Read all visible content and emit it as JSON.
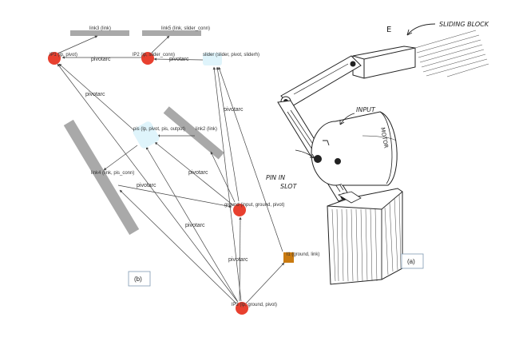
{
  "graph": {
    "nodes": [
      {
        "id": "lp1",
        "label": "lP1 (lp, pivot)"
      },
      {
        "id": "lp2",
        "label": "lP2 (lp, slider_conn)"
      },
      {
        "id": "slider",
        "label": "slider (slider, pivot, sliderh)"
      },
      {
        "id": "pis",
        "label": "pis (lp, pivot, pis, output)"
      },
      {
        "id": "ground",
        "label": "ground (input, ground, pivot)"
      },
      {
        "id": "lp3",
        "label": "lP3 (lp, ground, pivot)"
      },
      {
        "id": "l1",
        "label": "l1 (ground, link)"
      }
    ],
    "links": [
      {
        "id": "link3",
        "label": "link3 (link)"
      },
      {
        "id": "link5",
        "label": "link5 (link, slider_conn)"
      },
      {
        "id": "link2",
        "label": "link2 (link)"
      },
      {
        "id": "link4",
        "label": "link4 (link, pis_conn)"
      }
    ],
    "edge_label": "pivotarc",
    "panel_label": "(b)",
    "colors": {
      "node": "#e8402f",
      "slider_node": "#dff4fb",
      "square_node": "#c97a10",
      "link_bar": "#a9a9a9",
      "edge": "#444444"
    }
  },
  "sketch": {
    "letter": "E",
    "sliding_block": "SLIDING BLOCK",
    "input": "INPUT",
    "motor": "MOTOR",
    "pin_line1": "PIN IN",
    "pin_line2": "SLOT",
    "panel_label": "(a)"
  }
}
